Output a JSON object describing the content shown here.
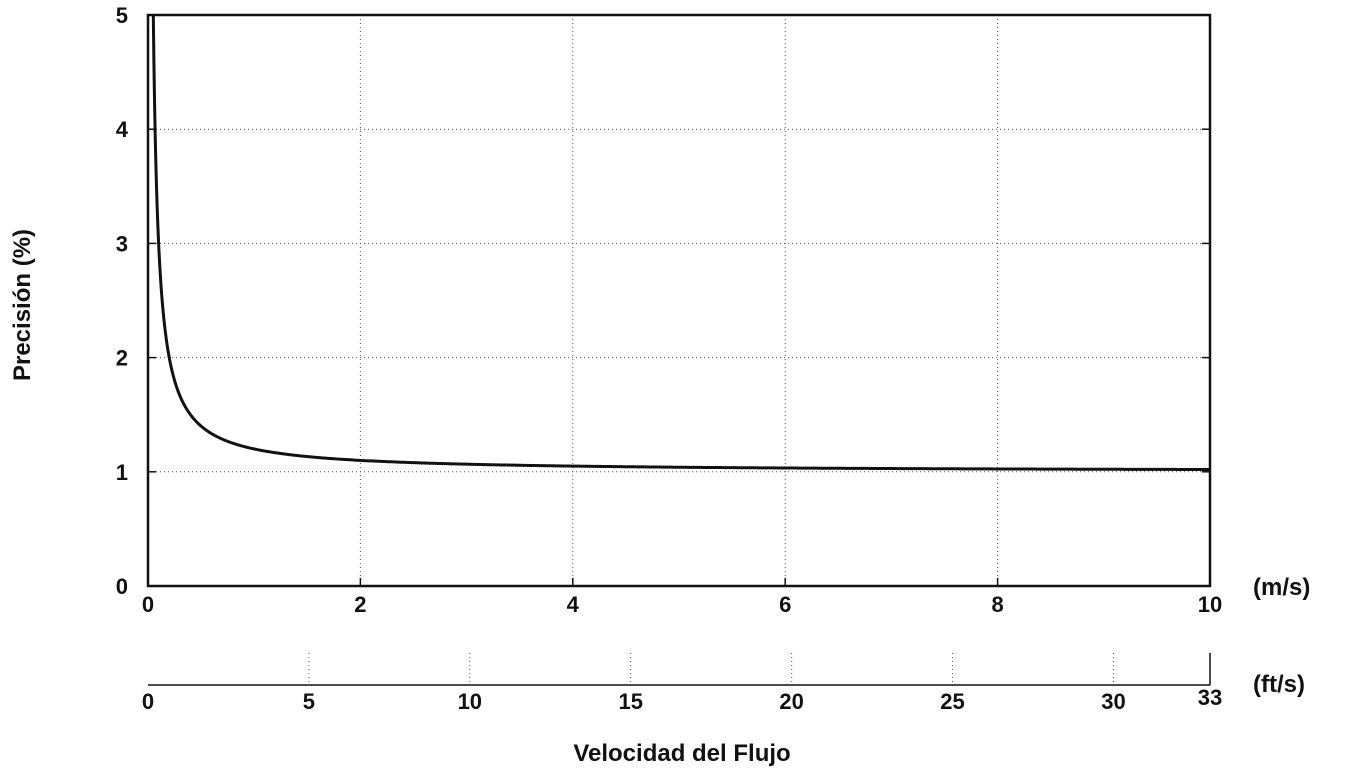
{
  "chart_data": {
    "type": "line",
    "xlabel": "Velocidad del Flujo",
    "ylabel": "Precisión (%)",
    "x_unit": "(m/s)",
    "x2_unit": "(ft/s)",
    "xlim": [
      0,
      10
    ],
    "ylim": [
      0,
      5
    ],
    "x2lim": [
      0,
      33
    ],
    "x_ticks": [
      "0",
      "2",
      "4",
      "6",
      "8",
      "10"
    ],
    "x_tick_values": [
      0,
      2,
      4,
      6,
      8,
      10
    ],
    "y_ticks": [
      "0",
      "1",
      "2",
      "3",
      "4",
      "5"
    ],
    "y_tick_values": [
      0,
      1,
      2,
      3,
      4,
      5
    ],
    "x2_ticks": [
      "0",
      "5",
      "10",
      "15",
      "20",
      "25",
      "30",
      "33"
    ],
    "x2_tick_values": [
      0,
      5,
      10,
      15,
      20,
      25,
      30,
      33
    ],
    "grid": true,
    "series": [
      {
        "x": [
          0.05,
          0.08,
          0.1,
          0.15,
          0.2,
          0.3,
          0.4,
          0.5,
          0.7,
          1,
          1.5,
          2,
          3,
          4,
          5,
          6,
          7,
          8,
          9,
          10
        ],
        "y": [
          5.0,
          3.5,
          3.0,
          2.33,
          2.0,
          1.67,
          1.5,
          1.4,
          1.29,
          1.2,
          1.13,
          1.1,
          1.07,
          1.05,
          1.04,
          1.033,
          1.029,
          1.025,
          1.022,
          1.02
        ]
      }
    ]
  }
}
